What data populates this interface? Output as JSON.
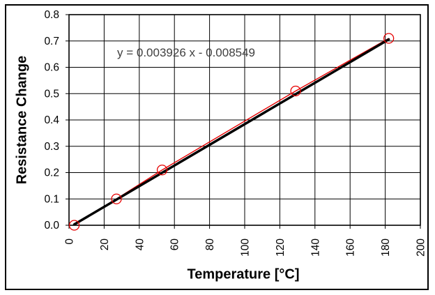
{
  "chart_data": {
    "type": "scatter",
    "title": "",
    "xlabel": "Temperature [°C]",
    "ylabel": "Resistance Change",
    "annotation": "y = 0.003926 x - 0.008549",
    "xlim": [
      0,
      200
    ],
    "ylim": [
      0,
      0.8
    ],
    "grid": true,
    "legend": "none",
    "x_ticks": [
      "0",
      "20",
      "40",
      "60",
      "80",
      "100",
      "120",
      "140",
      "160",
      "180",
      "200"
    ],
    "y_ticks": [
      "0.0",
      "0.1",
      "0.2",
      "0.3",
      "0.4",
      "0.5",
      "0.6",
      "0.7",
      "0.8"
    ],
    "series": [
      {
        "name": "measured-data",
        "type": "line+scatter",
        "color": "#e60000",
        "marker": "open-circle",
        "points": [
          [
            3,
            0.0
          ],
          [
            27,
            0.1
          ],
          [
            53,
            0.21
          ],
          [
            129,
            0.51
          ],
          [
            182,
            0.71
          ]
        ]
      },
      {
        "name": "linear-fit",
        "type": "trendline",
        "color": "#000000",
        "slope": 0.003926,
        "intercept": -0.008549,
        "x_range": [
          3,
          182
        ]
      }
    ],
    "colors": {
      "grid": "#000000",
      "axis_text": "#000000",
      "annotation_text": "#3f3f3f",
      "background": "#ffffff"
    }
  }
}
